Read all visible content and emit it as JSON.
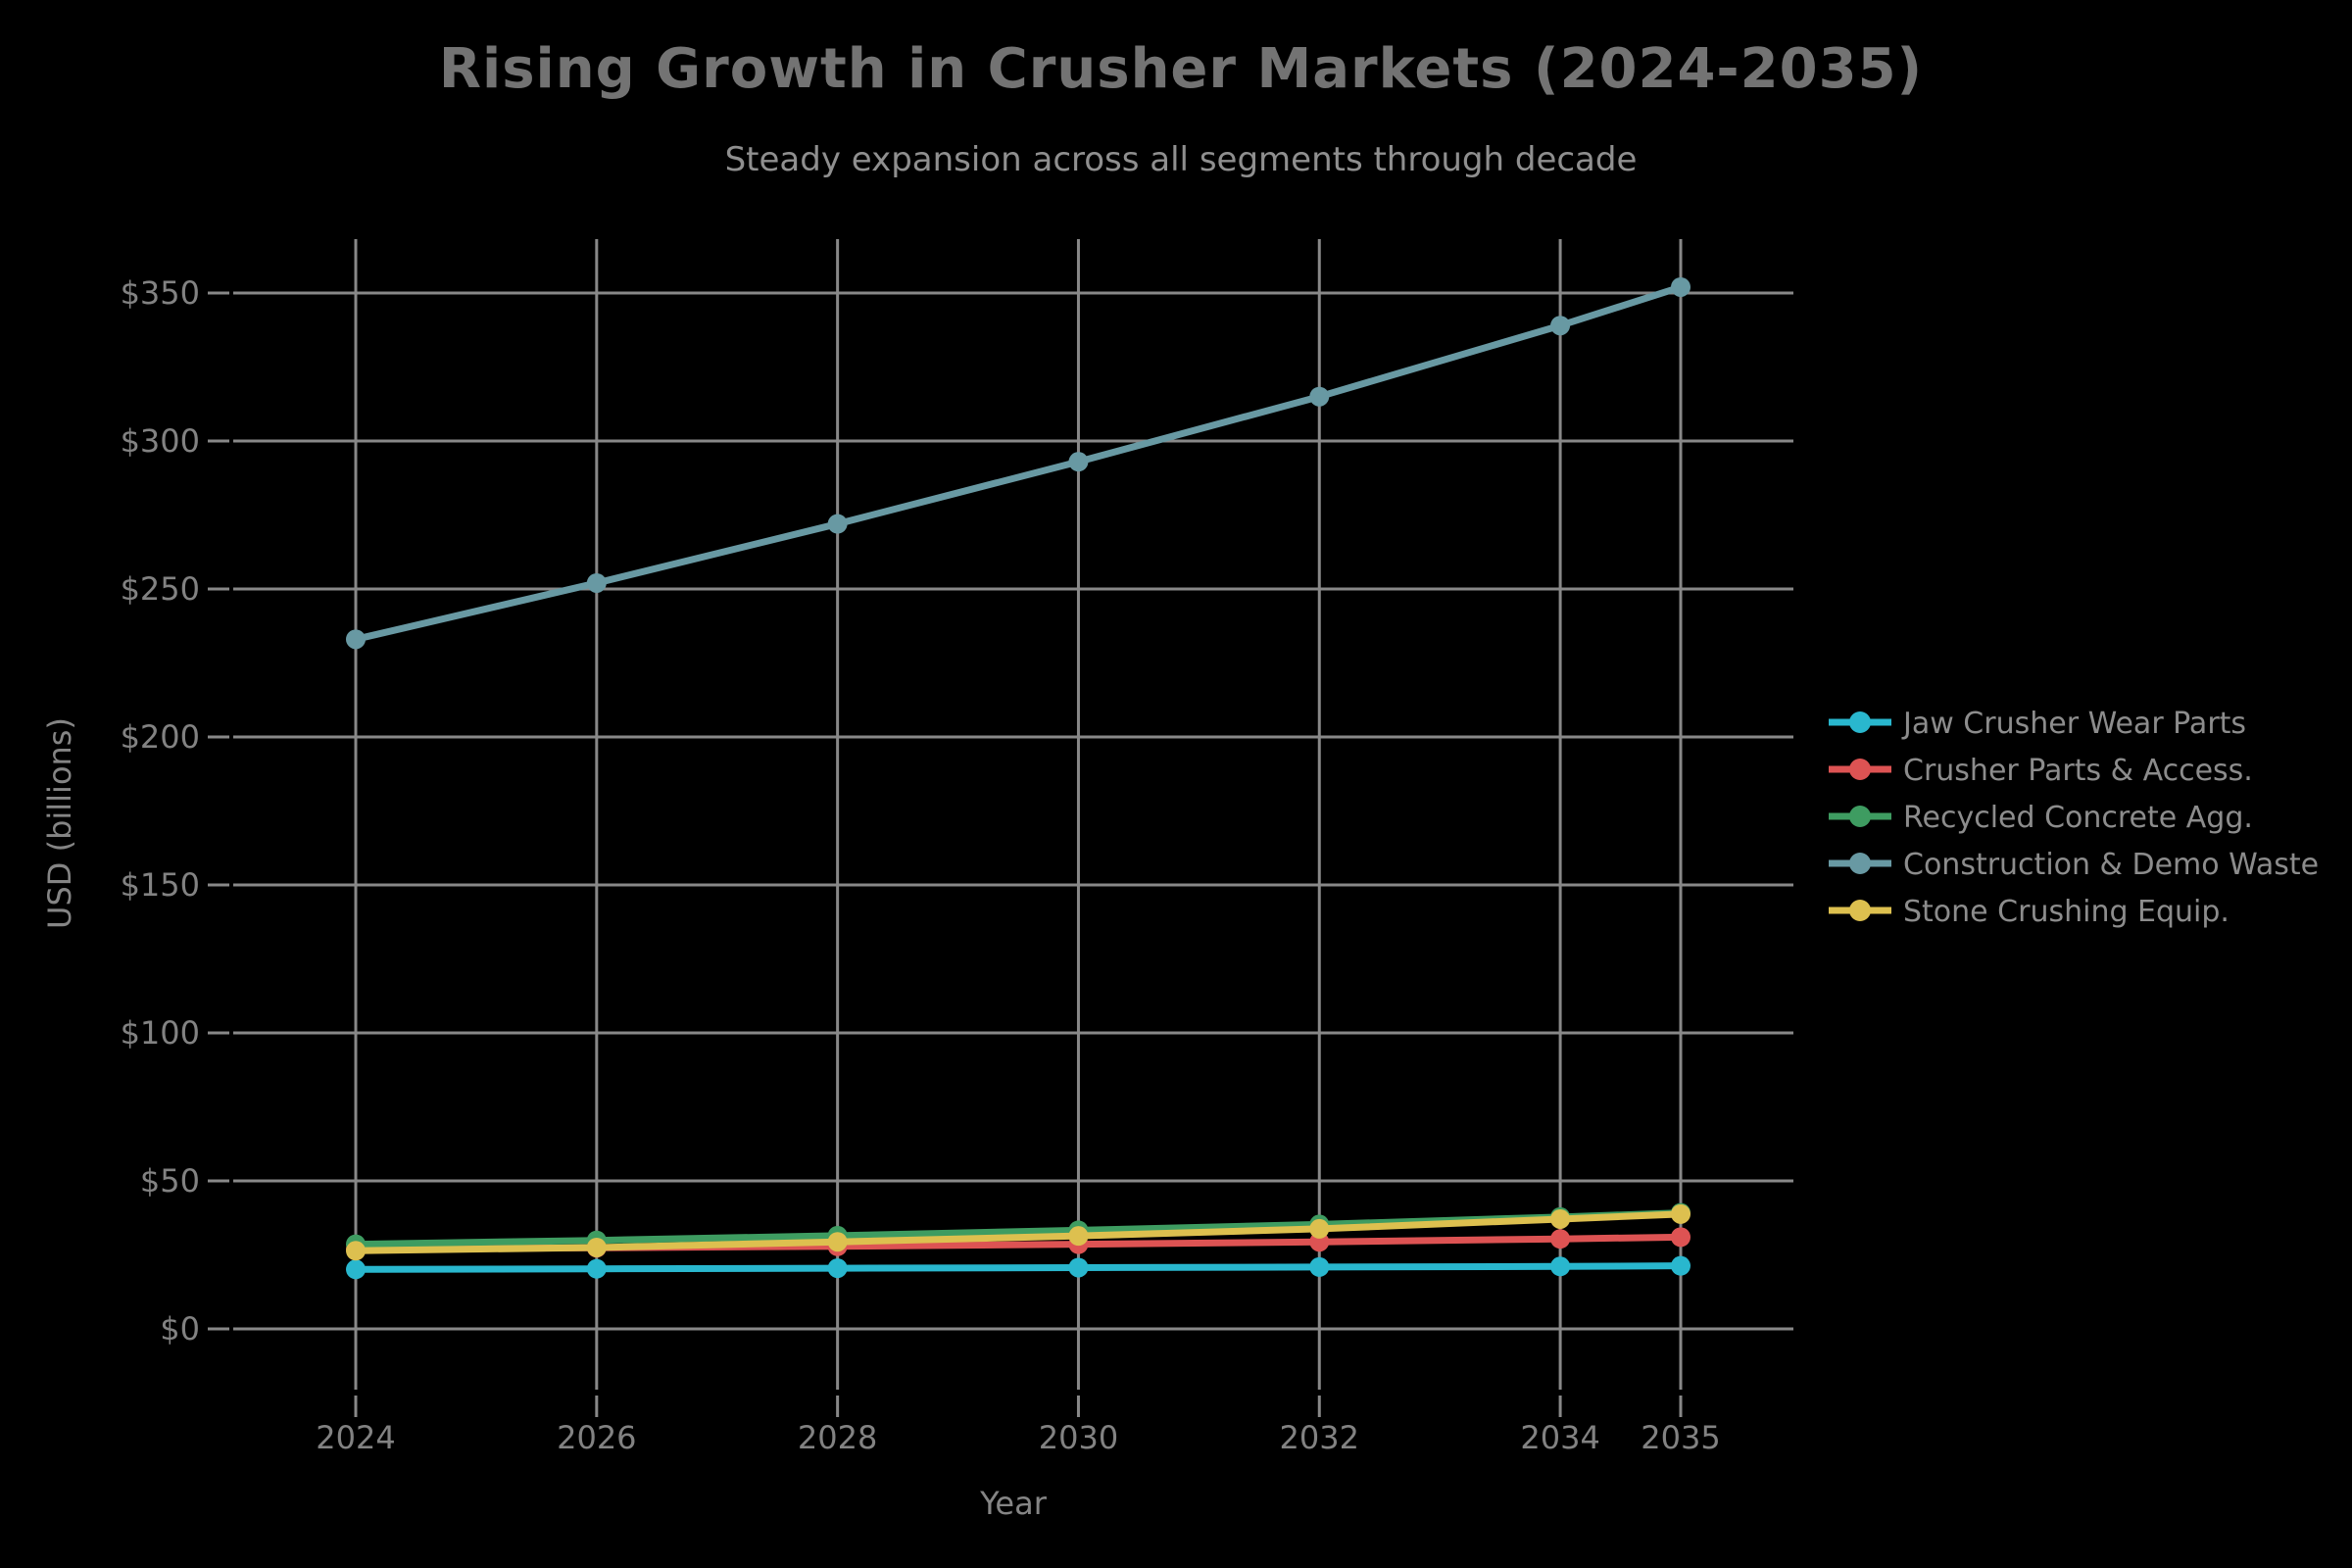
{
  "chart_data": {
    "type": "line",
    "title": "Rising Growth in Crusher Markets (2024-2035)",
    "subtitle": "Steady expansion across all segments through decade",
    "xlabel": "Year",
    "ylabel": "USD (billions)",
    "x": [
      2024,
      2026,
      2028,
      2030,
      2032,
      2034,
      2035
    ],
    "x_tick_labels": [
      "2024",
      "2026",
      "2028",
      "2030",
      "2032",
      "2034",
      "2035"
    ],
    "y_ticks": [
      0,
      50,
      100,
      150,
      200,
      250,
      300,
      350
    ],
    "y_tick_prefix": "$",
    "y_tick_labels": [
      "$0",
      "$50",
      "$100",
      "$150",
      "$200",
      "$250",
      "$300",
      "$350"
    ],
    "xlim": [
      2023,
      2036
    ],
    "ylim": [
      -20,
      373
    ],
    "grid": true,
    "legend_position": "center-right",
    "colors": {
      "background": "#000000",
      "grid": "#888888",
      "tick_text": "#828282",
      "axis_label_text": "#858585",
      "title_text": "#737373",
      "subtitle_text": "#8f8f8f",
      "legend_text": "#8c8c8c"
    },
    "series": [
      {
        "name": "Jaw Crusher Wear Parts",
        "color": "#29b7ce",
        "values": [
          20.1,
          20.3,
          20.5,
          20.7,
          20.9,
          21.1,
          21.3
        ]
      },
      {
        "name": "Crusher Parts & Access.",
        "color": "#dd5353",
        "values": [
          27.0,
          27.4,
          27.9,
          28.6,
          29.4,
          30.4,
          31.0
        ]
      },
      {
        "name": "Recycled Concrete Agg.",
        "color": "#3e9c61",
        "values": [
          28.6,
          29.9,
          31.5,
          33.3,
          35.3,
          37.8,
          39.2
        ]
      },
      {
        "name": "Construction & Demo Waste",
        "color": "#6899a3",
        "values": [
          233,
          252,
          272,
          293,
          315,
          339,
          352
        ]
      },
      {
        "name": "Stone Crushing Equip.",
        "color": "#ddc04f",
        "values": [
          26.4,
          27.5,
          29.4,
          31.4,
          33.8,
          37.1,
          38.8
        ]
      }
    ]
  }
}
